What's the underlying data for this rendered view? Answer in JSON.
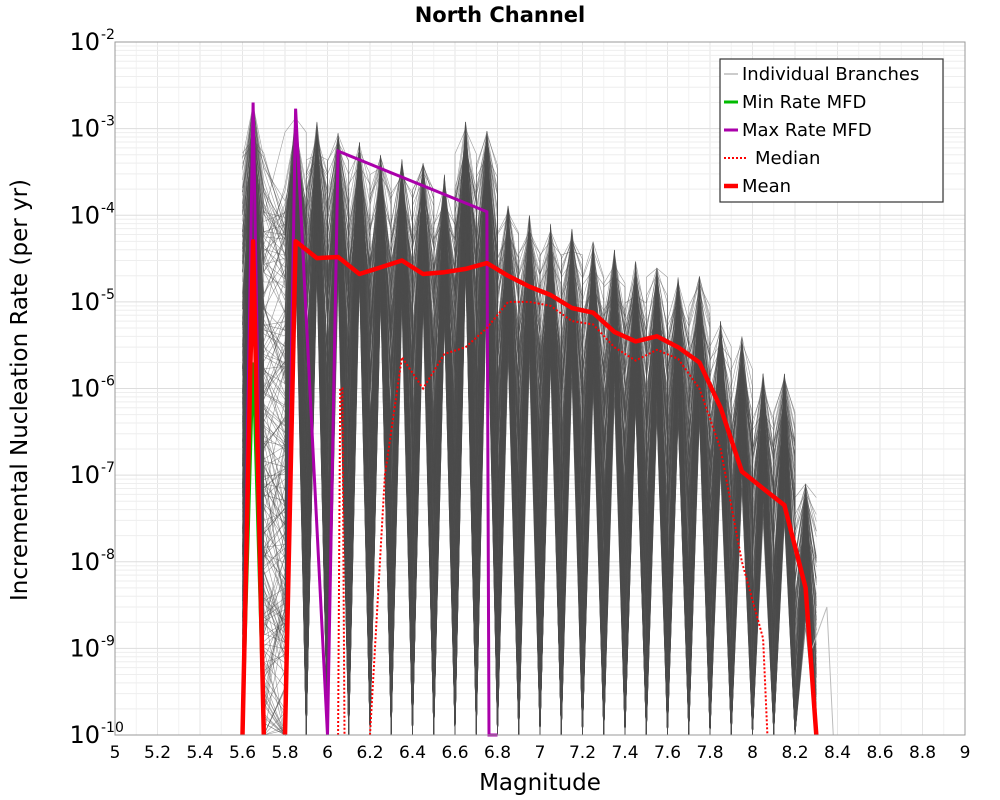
{
  "chart_data": {
    "type": "line",
    "title": "North Channel",
    "xlabel": "Magnitude",
    "ylabel": "Incremental Nucleation Rate (per yr)",
    "xlim": [
      5,
      9
    ],
    "ylim": [
      1e-10,
      0.01
    ],
    "yscale": "log",
    "grid": true,
    "legend_position": "top-right",
    "x_ticks": [
      "5",
      "5.2",
      "5.4",
      "5.6",
      "5.8",
      "6",
      "6.2",
      "6.4",
      "6.6",
      "6.8",
      "7",
      "7.2",
      "7.4",
      "7.6",
      "7.8",
      "8",
      "8.2",
      "8.4",
      "8.6",
      "8.8",
      "9"
    ],
    "y_ticks": [
      {
        "base": "10",
        "exp": "-10",
        "value": 1e-10
      },
      {
        "base": "10",
        "exp": "-9",
        "value": 1e-09
      },
      {
        "base": "10",
        "exp": "-8",
        "value": 1e-08
      },
      {
        "base": "10",
        "exp": "-7",
        "value": 1e-07
      },
      {
        "base": "10",
        "exp": "-6",
        "value": 1e-06
      },
      {
        "base": "10",
        "exp": "-5",
        "value": 1e-05
      },
      {
        "base": "10",
        "exp": "-4",
        "value": 0.0001
      },
      {
        "base": "10",
        "exp": "-3",
        "value": 0.001
      },
      {
        "base": "10",
        "exp": "-2",
        "value": 0.01
      }
    ],
    "series": [
      {
        "name": "Individual Branches",
        "color": "#555555",
        "style": "thin-band",
        "note_spikes": [
          {
            "x": 5.65,
            "y": 0.002
          },
          {
            "x": 5.85,
            "y": 0.0017
          },
          {
            "x": 5.95,
            "y": 0.0012
          },
          {
            "x": 6.05,
            "y": 0.0009
          },
          {
            "x": 6.15,
            "y": 0.0007
          },
          {
            "x": 6.25,
            "y": 0.0005
          },
          {
            "x": 6.35,
            "y": 0.00045
          },
          {
            "x": 6.45,
            "y": 0.0004
          },
          {
            "x": 6.55,
            "y": 0.0003
          },
          {
            "x": 6.65,
            "y": 0.0012
          },
          {
            "x": 6.75,
            "y": 0.00095
          },
          {
            "x": 6.85,
            "y": 0.00013
          },
          {
            "x": 6.95,
            "y": 0.0001
          },
          {
            "x": 7.05,
            "y": 8e-05
          },
          {
            "x": 7.15,
            "y": 7e-05
          },
          {
            "x": 7.25,
            "y": 5e-05
          },
          {
            "x": 7.35,
            "y": 4e-05
          },
          {
            "x": 7.45,
            "y": 3e-05
          },
          {
            "x": 7.55,
            "y": 2.5e-05
          },
          {
            "x": 7.65,
            "y": 2e-05
          },
          {
            "x": 7.75,
            "y": 2e-05
          },
          {
            "x": 7.85,
            "y": 6e-06
          },
          {
            "x": 7.95,
            "y": 4e-06
          },
          {
            "x": 8.05,
            "y": 1.5e-06
          },
          {
            "x": 8.15,
            "y": 1.5e-06
          },
          {
            "x": 8.25,
            "y": 8e-08
          }
        ]
      },
      {
        "name": "Min Rate MFD",
        "color": "#00bb00",
        "x": [
          5.6,
          5.65,
          5.7
        ],
        "y": [
          1e-10,
          2e-06,
          1e-10
        ]
      },
      {
        "name": "Max Rate MFD",
        "color": "#aa00aa",
        "segments": [
          {
            "x": [
              5.6,
              5.65,
              5.7
            ],
            "y": [
              1e-10,
              0.002,
              1e-10
            ]
          },
          {
            "x": [
              5.8,
              5.85,
              6.0
            ],
            "y": [
              1e-10,
              0.0017,
              1e-10
            ]
          },
          {
            "x": [
              6.0,
              6.05,
              6.75,
              6.76,
              6.8
            ],
            "y": [
              1e-10,
              0.00055,
              0.00011,
              1e-10,
              1e-10
            ]
          }
        ]
      },
      {
        "name": "Median",
        "color": "#ff0000",
        "dashed": true,
        "segments": [
          {
            "x": [
              6.05,
              6.06,
              6.07,
              6.08
            ],
            "y": [
              1e-10,
              1e-06,
              1e-06,
              1e-10
            ]
          },
          {
            "x": [
              6.2,
              6.27,
              6.35,
              6.45,
              6.55,
              6.65,
              6.75,
              6.85,
              6.95,
              7.05,
              7.15,
              7.25,
              7.35,
              7.45,
              7.55,
              7.65,
              7.75,
              7.85,
              7.95,
              8.05,
              8.07
            ],
            "y": [
              1e-10,
              1e-07,
              2.3e-06,
              1e-06,
              2.5e-06,
              3e-06,
              5e-06,
              1e-05,
              1e-05,
              9e-06,
              6e-06,
              5.5e-06,
              3e-06,
              2.1e-06,
              2.8e-06,
              2.2e-06,
              1e-06,
              2e-07,
              1e-08,
              1.3e-09,
              1e-10
            ]
          }
        ]
      },
      {
        "name": "Mean",
        "color": "#ff0000",
        "segments": [
          {
            "x": [
              5.6,
              5.65,
              5.7
            ],
            "y": [
              1e-10,
              5e-05,
              1e-10
            ]
          },
          {
            "x": [
              5.8,
              5.85,
              5.95,
              6.05,
              6.15,
              6.25,
              6.35,
              6.45,
              6.55,
              6.65,
              6.75,
              6.85,
              6.95,
              7.05,
              7.15,
              7.25,
              7.35,
              7.45,
              7.55,
              7.65,
              7.75,
              7.85,
              7.95,
              8.05,
              8.15,
              8.25,
              8.3
            ],
            "y": [
              1e-10,
              5e-05,
              3.2e-05,
              3.3e-05,
              2.1e-05,
              2.5e-05,
              3e-05,
              2.1e-05,
              2.2e-05,
              2.4e-05,
              2.8e-05,
              2e-05,
              1.5e-05,
              1.2e-05,
              8.5e-06,
              7.5e-06,
              4.5e-06,
              3.5e-06,
              4e-06,
              3e-06,
              2e-06,
              6e-07,
              1.1e-07,
              7e-08,
              4.5e-08,
              5e-09,
              1e-10
            ]
          }
        ]
      }
    ]
  }
}
